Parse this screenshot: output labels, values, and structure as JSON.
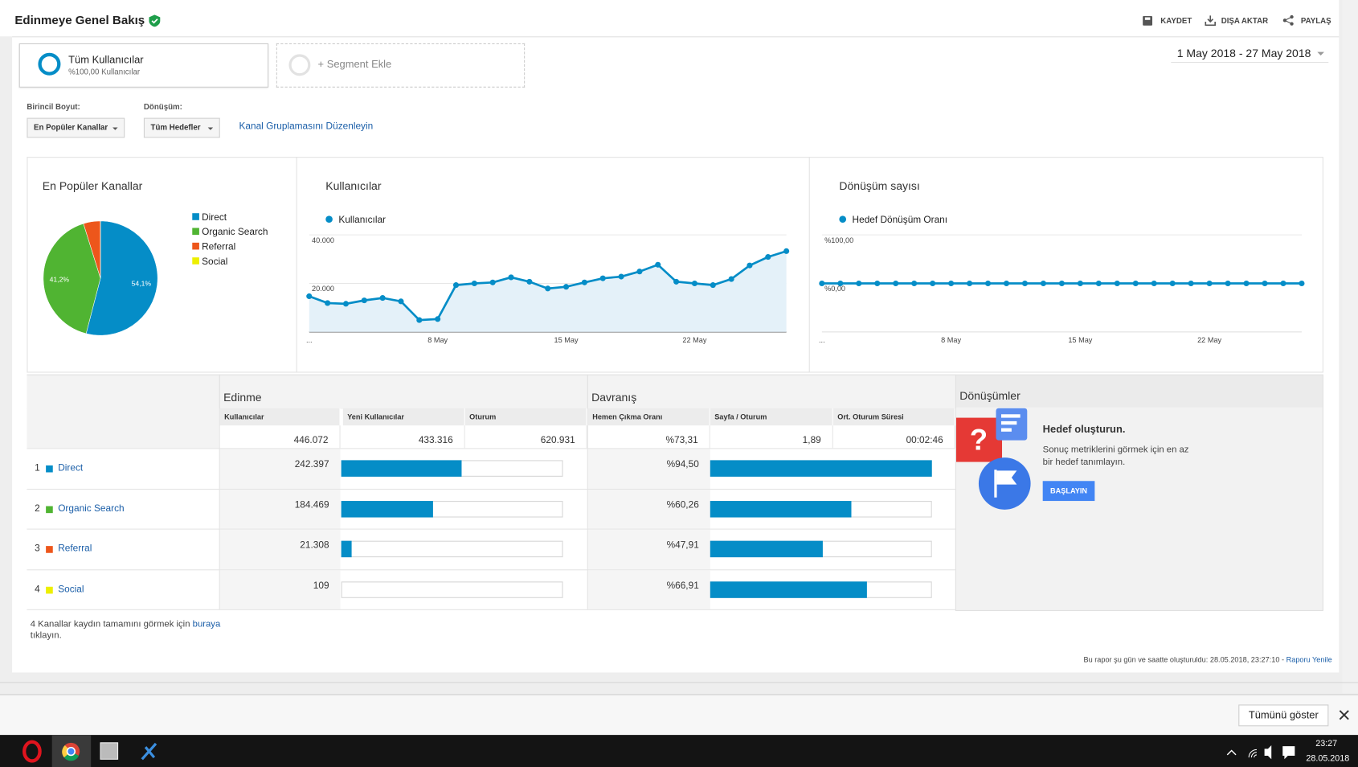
{
  "header": {
    "title": "Edinmeye Genel Bakış",
    "actions": [
      "KAYDET",
      "DIŞA AKTAR",
      "PAYLAŞ"
    ]
  },
  "segments": {
    "active": {
      "name": "Tüm Kullanıcılar",
      "share": "%100,00 Kullanıcılar"
    },
    "add": "+ Segment Ekle"
  },
  "date_range": "1 May 2018 - 27 May 2018",
  "controls": {
    "primary_dimension": {
      "label": "Birincil Boyut:",
      "value": "En Popüler Kanallar"
    },
    "conversion": {
      "label": "Dönüşüm:",
      "value": "Tüm Hedefler"
    },
    "edit_link": "Kanal Gruplamasını Düzenleyin"
  },
  "chart_data": [
    {
      "type": "pie",
      "title": "En Popüler Kanallar",
      "categories": [
        "Direct",
        "Organic Search",
        "Referral",
        "Social"
      ],
      "values": [
        54.1,
        41.2,
        4.8,
        0.02
      ],
      "value_labels": [
        "54,1%",
        "41,2%",
        null,
        null
      ],
      "colors": [
        "#058dc7",
        "#50b432",
        "#ed561b",
        "#edef00"
      ]
    },
    {
      "type": "line",
      "title": "Kullanıcılar",
      "categories": [
        "...",
        null,
        null,
        null,
        null,
        null,
        null,
        "8 May",
        null,
        null,
        null,
        null,
        null,
        null,
        "15 May",
        null,
        null,
        null,
        null,
        null,
        null,
        "22 May",
        null,
        null,
        null,
        null,
        null
      ],
      "series": [
        {
          "name": "Kullanıcılar",
          "color": "#058dc7",
          "values": [
            14700,
            11900,
            11600,
            13000,
            14000,
            12600,
            4900,
            5300,
            19300,
            20000,
            20400,
            22500,
            20700,
            17900,
            18600,
            20400,
            22100,
            22800,
            24900,
            27700,
            20700,
            20000,
            19300,
            21800,
            27400,
            30900,
            33300
          ]
        }
      ],
      "ylim": [
        0,
        40000
      ],
      "yticks": [
        {
          "value": 20000,
          "label": "20.000"
        },
        {
          "value": 40000,
          "label": "40.000"
        }
      ],
      "grid": true,
      "area": true
    },
    {
      "type": "line",
      "title": "Dönüşüm sayısı",
      "categories": [
        "...",
        null,
        null,
        null,
        null,
        null,
        null,
        "8 May",
        null,
        null,
        null,
        null,
        null,
        null,
        "15 May",
        null,
        null,
        null,
        null,
        null,
        null,
        "22 May",
        null,
        null,
        null,
        null,
        null
      ],
      "series": [
        {
          "name": "Hedef Dönüşüm Oranı",
          "color": "#058dc7",
          "values": [
            0,
            0,
            0,
            0,
            0,
            0,
            0,
            0,
            0,
            0,
            0,
            0,
            0,
            0,
            0,
            0,
            0,
            0,
            0,
            0,
            0,
            0,
            0,
            0,
            0,
            0,
            0
          ]
        }
      ],
      "ylim": [
        -100,
        100
      ],
      "yticks": [
        {
          "value": 0,
          "label": "%0,00"
        },
        {
          "value": 100,
          "label": "%100,00"
        }
      ],
      "grid": true,
      "area": false
    }
  ],
  "table": {
    "groups": [
      "Edinme",
      "Davranış",
      "Dönüşümler"
    ],
    "columns": [
      "Kullanıcılar",
      "Yeni Kullanıcılar",
      "Oturum",
      "Hemen Çıkma Oranı",
      "Sayfa / Oturum",
      "Ort. Oturum Süresi"
    ],
    "totals": [
      {
        "value": 446072,
        "label": "446.072"
      },
      {
        "value": 433316,
        "label": "433.316"
      },
      {
        "value": 620931,
        "label": "620.931"
      },
      {
        "value": 73.31,
        "label": "%73,31"
      },
      {
        "value": 1.89,
        "label": "1,89"
      },
      "00:02:46"
    ],
    "rows": [
      {
        "rank": 1,
        "channel": "Direct",
        "color": "#058dc7",
        "users": {
          "value": 242397,
          "label": "242.397"
        },
        "bounce_rate": {
          "value": 94.5,
          "label": "%94,50"
        }
      },
      {
        "rank": 2,
        "channel": "Organic Search",
        "color": "#50b432",
        "users": {
          "value": 184469,
          "label": "184.469"
        },
        "bounce_rate": {
          "value": 60.26,
          "label": "%60,26"
        }
      },
      {
        "rank": 3,
        "channel": "Referral",
        "color": "#ed561b",
        "users": {
          "value": 21308,
          "label": "21.308"
        },
        "bounce_rate": {
          "value": 47.91,
          "label": "%47,91"
        }
      },
      {
        "rank": 4,
        "channel": "Social",
        "color": "#edef00",
        "users": {
          "value": 109,
          "label": "109"
        },
        "bounce_rate": {
          "value": 66.91,
          "label": "%66,91"
        }
      }
    ]
  },
  "goal_panel": {
    "title": "Hedef oluşturun.",
    "text": "Sonuç metriklerini görmek için en az bir hedef tanımlayın.",
    "button": "BAŞLAYIN"
  },
  "footer": {
    "note_before": "4 Kanallar kaydın tamamını görmek için",
    "note_link": "buraya",
    "note_after": "tıklayın.",
    "generated": "Bu rapor şu gün ve saatte oluşturuldu: 28.05.2018, 23:27:10 -",
    "refresh_link": "Raporu Yenile"
  },
  "download_bar": {
    "show_all": "Tümünü göster"
  },
  "taskbar": {
    "time": "23:27",
    "date": "28.05.2018"
  }
}
